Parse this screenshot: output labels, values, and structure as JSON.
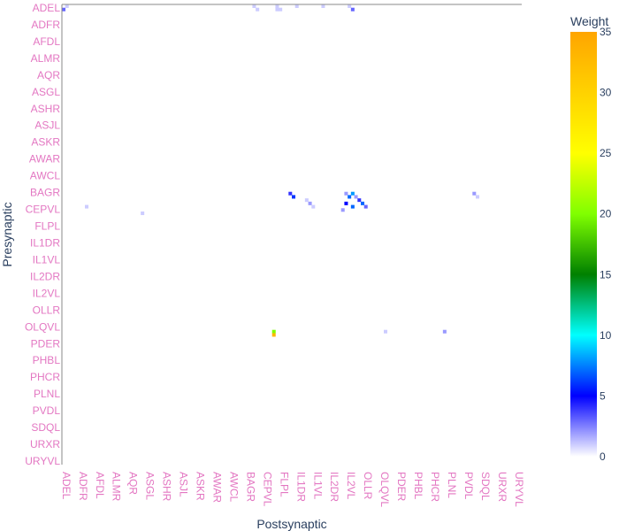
{
  "chart_data": {
    "type": "heatmap",
    "xlabel": "Postsynaptic",
    "ylabel": "Presynaptic",
    "colorbar_title": "Weight",
    "zlim": [
      0,
      35
    ],
    "colorbar_ticks": [
      "0",
      "5",
      "10",
      "15",
      "20",
      "25",
      "30",
      "35"
    ],
    "colorbar_tick_values": [
      0,
      5,
      10,
      15,
      20,
      25,
      30,
      35
    ],
    "tick_color": "#e377c2",
    "colorscale": [
      [
        0.0,
        "#ffffff"
      ],
      [
        0.143,
        "#0000ff"
      ],
      [
        0.286,
        "#00ffff"
      ],
      [
        0.429,
        "#008000"
      ],
      [
        0.571,
        "#80ff00"
      ],
      [
        0.714,
        "#ffff00"
      ],
      [
        1.0,
        "#ffa500"
      ]
    ],
    "x_labels": [
      "ADEL",
      "ADFR",
      "AFDL",
      "ALMR",
      "AQR",
      "ASGL",
      "ASHR",
      "ASJL",
      "ASKR",
      "AWAR",
      "AWCL",
      "BAGR",
      "CEPVL",
      "FLPL",
      "IL1DR",
      "IL1VL",
      "IL2DR",
      "IL2VL",
      "OLLR",
      "OLQVL",
      "PDER",
      "PHBL",
      "PHCR",
      "PLNL",
      "PVDL",
      "SDQL",
      "URXR",
      "URYVL"
    ],
    "y_labels": [
      "ADEL",
      "ADFR",
      "AFDL",
      "ALMR",
      "AQR",
      "ASGL",
      "ASHR",
      "ASJL",
      "ASKR",
      "AWAR",
      "AWCL",
      "BAGR",
      "CEPVL",
      "FLPL",
      "IL1DR",
      "IL1VL",
      "IL2DR",
      "IL2VL",
      "OLLR",
      "OLQVL",
      "PDER",
      "PHBL",
      "PHCR",
      "PLNL",
      "PVDL",
      "SDQL",
      "URXR",
      "URYVL"
    ],
    "n_cols": 140,
    "n_rows": 140,
    "cells": [
      {
        "col": 0,
        "row": 1,
        "value": 3
      },
      {
        "col": 1,
        "row": 0,
        "value": 1
      },
      {
        "col": 58,
        "row": 0,
        "value": 1
      },
      {
        "col": 59,
        "row": 1,
        "value": 1
      },
      {
        "col": 65,
        "row": 0,
        "value": 1
      },
      {
        "col": 65,
        "row": 1,
        "value": 1
      },
      {
        "col": 66,
        "row": 1,
        "value": 1
      },
      {
        "col": 71,
        "row": 0,
        "value": 1
      },
      {
        "col": 79,
        "row": 0,
        "value": 1
      },
      {
        "col": 87,
        "row": 0,
        "value": 1
      },
      {
        "col": 88,
        "row": 1,
        "value": 3
      },
      {
        "col": 7,
        "row": 61,
        "value": 1
      },
      {
        "col": 24,
        "row": 63,
        "value": 1
      },
      {
        "col": 69,
        "row": 57,
        "value": 4
      },
      {
        "col": 70,
        "row": 58,
        "value": 6
      },
      {
        "col": 74,
        "row": 59,
        "value": 1
      },
      {
        "col": 75,
        "row": 60,
        "value": 2
      },
      {
        "col": 76,
        "row": 61,
        "value": 1
      },
      {
        "col": 85,
        "row": 62,
        "value": 2
      },
      {
        "col": 86,
        "row": 57,
        "value": 2
      },
      {
        "col": 86,
        "row": 60,
        "value": 5
      },
      {
        "col": 87,
        "row": 58,
        "value": 7
      },
      {
        "col": 88,
        "row": 57,
        "value": 8
      },
      {
        "col": 88,
        "row": 61,
        "value": 7
      },
      {
        "col": 89,
        "row": 58,
        "value": 2
      },
      {
        "col": 90,
        "row": 59,
        "value": 4
      },
      {
        "col": 91,
        "row": 60,
        "value": 7
      },
      {
        "col": 92,
        "row": 61,
        "value": 3
      },
      {
        "col": 98,
        "row": 99,
        "value": 1
      },
      {
        "col": 125,
        "row": 57,
        "value": 2
      },
      {
        "col": 126,
        "row": 58,
        "value": 1
      },
      {
        "col": 116,
        "row": 99,
        "value": 2
      },
      {
        "col": 64,
        "row": 99,
        "value": 20
      },
      {
        "col": 64,
        "row": 100,
        "value": 33
      }
    ]
  }
}
